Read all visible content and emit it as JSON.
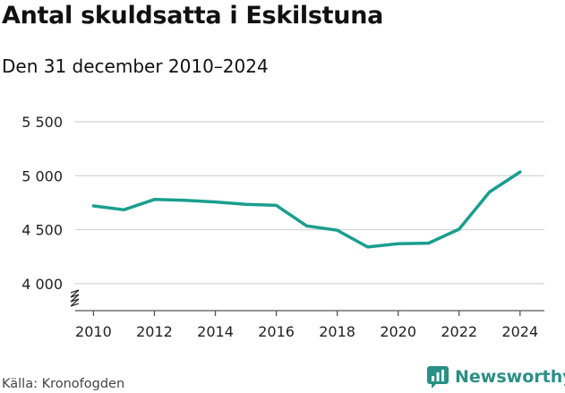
{
  "title": "Antal skuldsatta i Eskilstuna",
  "subtitle": "Den 31 december 2010–2024",
  "source": "Källa: Kronofogden",
  "brand": {
    "name": "Newsworthy",
    "icon": "newsworthy-logo-icon",
    "color": "#2a8f86"
  },
  "chart_data": {
    "type": "line",
    "title": "Antal skuldsatta i Eskilstuna",
    "subtitle": "Den 31 december 2010–2024",
    "x": [
      2010,
      2011,
      2012,
      2013,
      2014,
      2015,
      2016,
      2017,
      2018,
      2019,
      2020,
      2021,
      2022,
      2023,
      2024
    ],
    "series": [
      {
        "values": [
          4720,
          4685,
          4780,
          4772,
          4757,
          4735,
          4725,
          4535,
          4495,
          4340,
          4370,
          4375,
          4505,
          4850,
          5035
        ],
        "color": "#1a9e8f"
      }
    ],
    "x_ticks": [
      "2010",
      "2012",
      "2014",
      "2016",
      "2018",
      "2020",
      "2022",
      "2024"
    ],
    "y_ticks": [
      "4 000",
      "4 500",
      "5 000",
      "5 500"
    ],
    "ylim": [
      3750,
      5500
    ],
    "xlim": [
      2009.4,
      2024.8
    ],
    "y_axis_break": true,
    "grid": true,
    "xlabel": "",
    "ylabel": ""
  }
}
